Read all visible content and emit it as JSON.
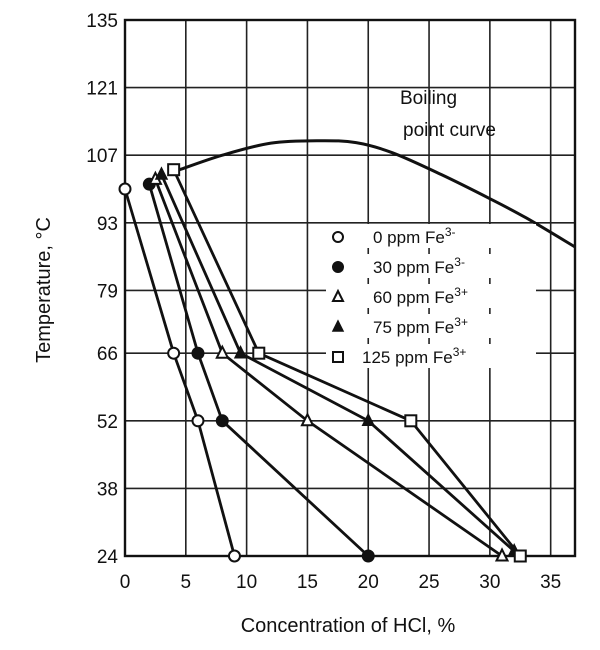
{
  "chart_data": {
    "type": "line",
    "title": "",
    "xlabel": "Concentration of HCl, %",
    "ylabel": "Temperature, °C",
    "xlim": [
      0,
      37
    ],
    "ylim": [
      24,
      135
    ],
    "x_ticks": [
      0,
      5,
      10,
      15,
      20,
      25,
      30,
      35
    ],
    "y_ticks": [
      24,
      38,
      52,
      66,
      79,
      93,
      107,
      121,
      135
    ],
    "grid": true,
    "legend_placement": "right",
    "annotation": {
      "line1": "Boiling",
      "line2": "point curve"
    },
    "boiling_curve": {
      "x": [
        4.5,
        8,
        12,
        16,
        19,
        22,
        26,
        30,
        33,
        37
      ],
      "y": [
        104,
        107,
        109.5,
        110,
        109.6,
        107.5,
        103,
        98,
        94,
        88
      ]
    },
    "series": [
      {
        "name": "0 ppm Fe3-",
        "label_main": "0 ppm Fe",
        "label_sup": "3-",
        "marker": "circle-open",
        "x": [
          0,
          4,
          6,
          9
        ],
        "y": [
          100,
          66,
          52,
          24
        ]
      },
      {
        "name": "30 ppm Fe3-",
        "label_main": "30 ppm Fe",
        "label_sup": "3-",
        "marker": "circle-filled",
        "x": [
          2,
          6,
          8,
          20
        ],
        "y": [
          101,
          66,
          52,
          24
        ]
      },
      {
        "name": "60 ppm Fe3+",
        "label_main": "60 ppm Fe",
        "label_sup": "3+",
        "marker": "triangle-open",
        "x": [
          2.5,
          8,
          15,
          31
        ],
        "y": [
          102,
          66,
          52,
          24
        ]
      },
      {
        "name": "75 ppm Fe3+",
        "label_main": "75 ppm Fe",
        "label_sup": "3+",
        "marker": "triangle-filled",
        "x": [
          3,
          9.5,
          20,
          32
        ],
        "y": [
          103,
          66,
          52,
          25
        ]
      },
      {
        "name": "125 ppm Fe3+",
        "label_main": "125 ppm Fe",
        "label_sup": "3+",
        "marker": "square-open",
        "x": [
          4,
          11,
          23.5,
          32.5
        ],
        "y": [
          104,
          66,
          52,
          24
        ]
      }
    ]
  }
}
